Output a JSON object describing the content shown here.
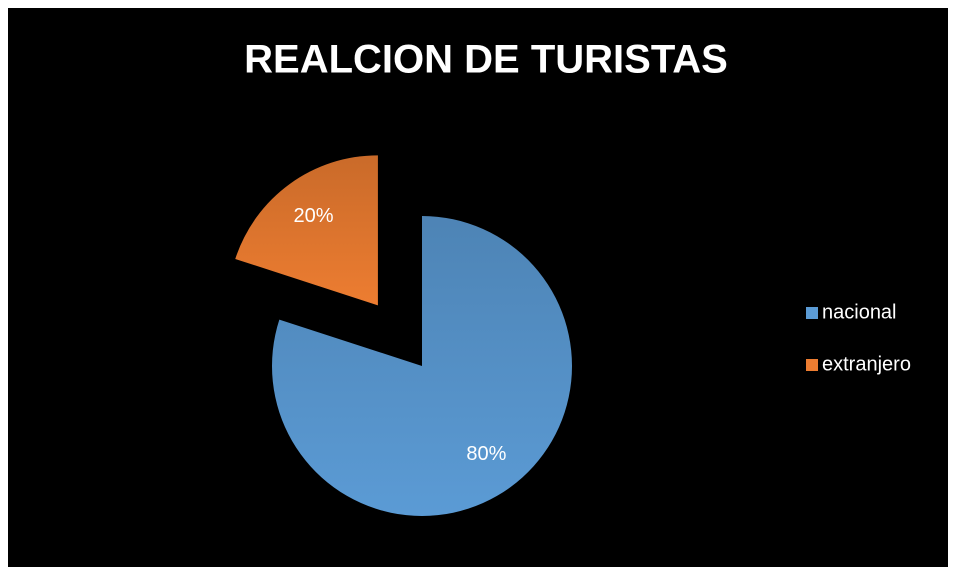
{
  "chart_data": {
    "type": "pie",
    "title": "REALCION DE TURISTAS",
    "categories": [
      "nacional",
      "extranjero"
    ],
    "values": [
      80,
      20
    ],
    "value_labels": [
      "80%",
      "20%"
    ],
    "colors": [
      "#5b9bd5",
      "#ed7d31"
    ],
    "exploded": [
      false,
      true
    ],
    "legend": "right"
  }
}
